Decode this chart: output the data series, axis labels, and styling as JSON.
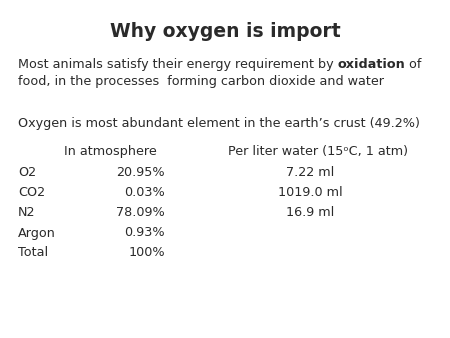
{
  "title": "Why oxygen is import",
  "bg_color": "#ffffff",
  "text_color": "#2a2a2a",
  "title_fontsize": 13.5,
  "body_fontsize": 9.2,
  "paragraph2": "Oxygen is most abundant element in the earth’s crust (49.2%)",
  "para1_line1_pre": "Most animals satisfy their energy requirement by ",
  "para1_line1_bold": "oxidation",
  "para1_line1_post": " of",
  "para1_line2": "food, in the processes  forming carbon dioxide and water",
  "header_col1": "In atmosphere",
  "header_col2": "Per liter water (15ᵒC, 1 atm)",
  "rows": [
    [
      "O2",
      "20.95%",
      "7.22 ml"
    ],
    [
      "CO2",
      "0.03%",
      "1019.0 ml"
    ],
    [
      "N2",
      "78.09%",
      "16.9 ml"
    ],
    [
      "Argon",
      "0.93%",
      ""
    ],
    [
      "Total",
      "100%",
      ""
    ]
  ]
}
